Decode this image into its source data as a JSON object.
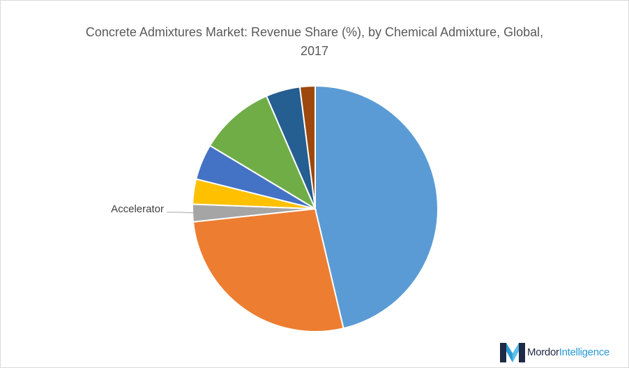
{
  "chart_data": {
    "type": "pie",
    "title_line1": "Concrete Admixtures Market: Revenue Share (%), by Chemical Admixture, Global,",
    "title_line2": "2017",
    "start_angle_deg": 0,
    "direction": "clockwise",
    "slices": [
      {
        "label": "",
        "value": 46.3,
        "color": "#5b9bd5"
      },
      {
        "label": "",
        "value": 27.0,
        "color": "#ed7d31"
      },
      {
        "label": "Accelerator",
        "value": 2.3,
        "color": "#a5a5a5"
      },
      {
        "label": "",
        "value": 3.3,
        "color": "#ffc000"
      },
      {
        "label": "",
        "value": 4.7,
        "color": "#4472c4"
      },
      {
        "label": "",
        "value": 9.9,
        "color": "#70ad47"
      },
      {
        "label": "",
        "value": 4.5,
        "color": "#255e91"
      },
      {
        "label": "",
        "value": 2.0,
        "color": "#9e480e"
      }
    ],
    "legend": "none"
  },
  "branding": {
    "logo_word1": "Mordor",
    "logo_word2": "Intelligence",
    "logo_colors": [
      "#1f2a44",
      "#2a9bd6"
    ]
  }
}
